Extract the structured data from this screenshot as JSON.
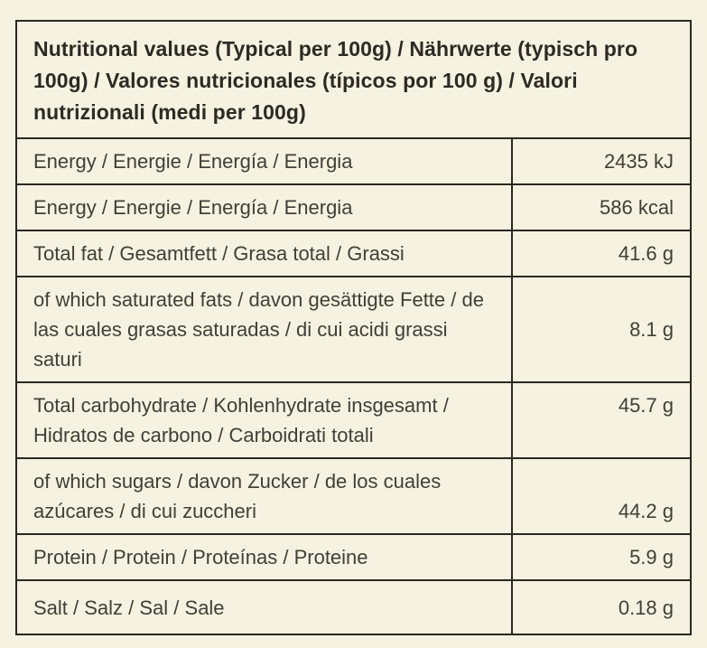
{
  "colors": {
    "bg": "#f6f2e1",
    "border": "#2b2721",
    "text": "#433e36",
    "title": "#2e2a23"
  },
  "table": {
    "title": "Nutritional values (Typical per 100g) / Nährwerte (typisch pro 100g) / Valores nutricionales (típicos por 100 g) / Valori nutrizionali (medi per 100g)",
    "rows": [
      {
        "label": "Energy / Energie / Energía / Energia",
        "value": "2435 kJ"
      },
      {
        "label": "Energy / Energie / Energía / Energia",
        "value": "586 kcal"
      },
      {
        "label": "Total fat / Gesamtfett / Grasa total / Grassi",
        "value": "41.6 g"
      },
      {
        "label": "of which saturated fats / davon gesättigte Fette / de las cuales grasas saturadas / di cui acidi grassi saturi",
        "value": "8.1 g"
      },
      {
        "label": "Total carbohydrate / Kohlenhydrate insgesamt / Hidratos de carbono / Carboidrati totali",
        "value": "45.7 g"
      },
      {
        "label": "of which sugars / davon Zucker / de los cuales azúcares / di cui zuccheri",
        "value": "44.2 g"
      },
      {
        "label": "Protein / Protein / Proteínas / Proteine",
        "value": "5.9 g"
      },
      {
        "label": "Salt / Salz / Sal / Sale",
        "value": "0.18 g"
      }
    ]
  }
}
